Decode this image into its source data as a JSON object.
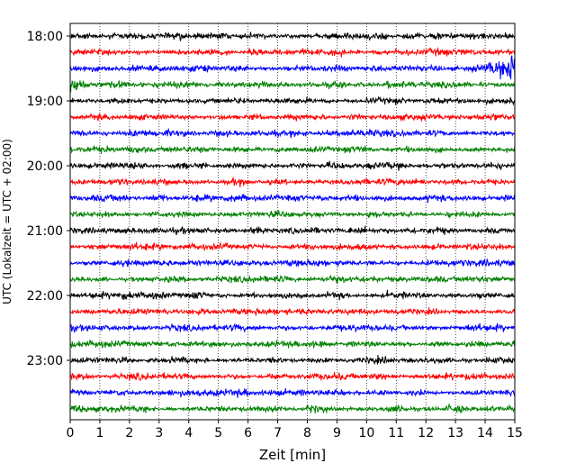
{
  "chart_data": {
    "type": "line",
    "chart_kind": "helicorder",
    "title": "",
    "xlabel": "Zeit  [min]",
    "ylabel": "UTC (Lokalzeit = UTC + 02:00)",
    "xlim": [
      0,
      15
    ],
    "x_ticks": [
      "0",
      "1",
      "2",
      "3",
      "4",
      "5",
      "6",
      "7",
      "8",
      "9",
      "10",
      "11",
      "12",
      "13",
      "14",
      "15"
    ],
    "y_ticks": [
      "18:00",
      "19:00",
      "20:00",
      "21:00",
      "22:00",
      "23:00"
    ],
    "rows_per_hour": 4,
    "row_start_times": [
      "18:00",
      "18:15",
      "18:30",
      "18:45",
      "19:00",
      "19:15",
      "19:30",
      "19:45",
      "20:00",
      "20:15",
      "20:30",
      "20:45",
      "21:00",
      "21:15",
      "21:30",
      "21:45",
      "22:00",
      "22:15",
      "22:30",
      "22:45",
      "23:00",
      "23:15",
      "23:30",
      "23:45"
    ],
    "color_cycle": [
      "#000000",
      "#ff0000",
      "#0000ff",
      "#008000"
    ],
    "grid": {
      "vertical": true,
      "style": "dotted"
    },
    "events": [
      {
        "row_start": "18:30",
        "x_start": 14.0,
        "x_end": 15.0,
        "relative_amplitude": 1.0
      },
      {
        "row_start": "18:45",
        "x_start": 0.0,
        "x_end": 1.5,
        "relative_amplitude": 0.6
      }
    ],
    "baseline_relative_amplitude": 0.12
  }
}
